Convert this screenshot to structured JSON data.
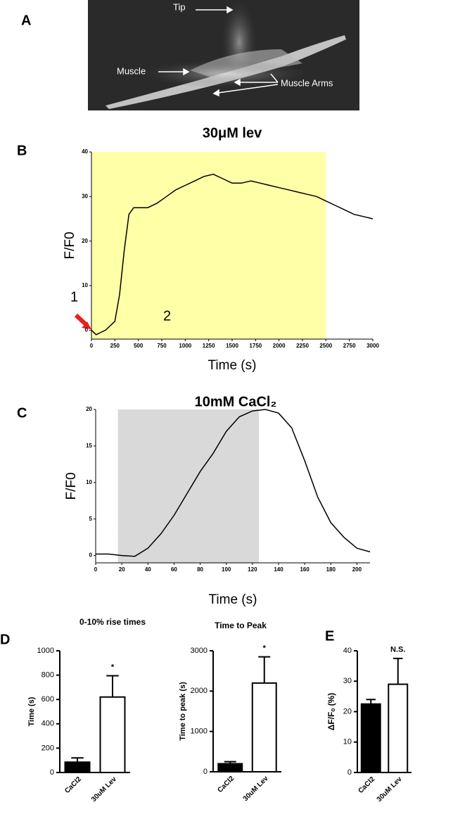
{
  "panels": {
    "a": "A",
    "b": "B",
    "c": "C",
    "d": "D",
    "e": "E"
  },
  "image": {
    "tip": "Tip",
    "muscle": "Muscle",
    "muscle_arms": "Muscle Arms"
  },
  "chart_data": [
    {
      "type": "line",
      "title": "30μM lev",
      "x_label": "Time (s)",
      "y_label": "F/F0",
      "x": [
        0,
        50,
        100,
        150,
        200,
        250,
        300,
        350,
        400,
        450,
        500,
        600,
        700,
        800,
        900,
        1000,
        1100,
        1200,
        1300,
        1400,
        1500,
        1600,
        1700,
        1800,
        1900,
        2000,
        2100,
        2200,
        2300,
        2400,
        2500,
        2600,
        2700,
        2800,
        2900,
        3000
      ],
      "values": [
        0,
        -1,
        -0.5,
        0,
        1,
        2,
        8,
        18,
        26,
        27.5,
        27.5,
        27.5,
        28.5,
        30,
        31.5,
        32.5,
        33.5,
        34.5,
        35,
        34,
        33,
        33,
        33.5,
        33,
        32.5,
        32,
        31.5,
        31,
        30.5,
        30,
        29,
        28,
        27,
        26,
        25.5,
        25
      ],
      "color": "#000000",
      "shade": {
        "range": [
          0,
          2500
        ],
        "color": "#ffffa8"
      },
      "xlim": [
        0,
        3000
      ],
      "xticks": [
        0,
        250,
        500,
        750,
        1000,
        1250,
        1500,
        1750,
        2000,
        2250,
        2500,
        2750,
        3000
      ],
      "ylim": [
        -2,
        40
      ],
      "yticks": [
        0,
        10,
        20,
        30,
        40
      ],
      "annotations": [
        "1",
        "2"
      ]
    },
    {
      "type": "line",
      "title": "10mM CaCl₂",
      "x_label": "Time (s)",
      "y_label": "F/F0",
      "x": [
        0,
        10,
        20,
        30,
        40,
        50,
        60,
        70,
        80,
        90,
        100,
        110,
        120,
        130,
        140,
        150,
        160,
        170,
        180,
        190,
        200,
        210
      ],
      "values": [
        0.2,
        0.2,
        0,
        -0.1,
        1,
        3,
        5.5,
        8.5,
        11.5,
        14,
        17,
        19,
        19.8,
        20,
        19.5,
        17.5,
        13,
        8,
        4.5,
        2.5,
        1,
        0.5
      ],
      "color": "#000000",
      "shade": {
        "range": [
          17,
          125
        ],
        "color": "#d9d9d9"
      },
      "xlim": [
        0,
        210
      ],
      "xticks": [
        0,
        20,
        40,
        60,
        80,
        100,
        120,
        140,
        160,
        180,
        200
      ],
      "ylim": [
        -1,
        20
      ],
      "yticks": [
        0,
        5,
        10,
        15,
        20
      ]
    },
    {
      "type": "bar",
      "title": "0-10% rise times",
      "y_label": "Time (s)",
      "categories": [
        "CaCl2",
        "30uM Lev"
      ],
      "values": [
        85,
        620
      ],
      "errors": [
        35,
        175
      ],
      "colors": [
        "#000000",
        "#ffffff"
      ],
      "annotation": "*",
      "ylim": [
        0,
        1000
      ],
      "yticks": [
        0,
        200,
        400,
        600,
        800,
        1000
      ]
    },
    {
      "type": "bar",
      "title": "Time to Peak",
      "y_label": "Time to peak (s)",
      "categories": [
        "CaCl2",
        "30uM Lev"
      ],
      "values": [
        200,
        2200
      ],
      "errors": [
        50,
        650
      ],
      "colors": [
        "#000000",
        "#ffffff"
      ],
      "annotation": "*",
      "ylim": [
        0,
        3000
      ],
      "yticks": [
        0,
        1000,
        2000,
        3000
      ]
    },
    {
      "type": "bar",
      "y_label": "ΔF/Fₒ (%)",
      "categories": [
        "CaCl2",
        "30uM Lev"
      ],
      "values": [
        22.5,
        29
      ],
      "errors": [
        1.5,
        8.5
      ],
      "colors": [
        "#000000",
        "#ffffff"
      ],
      "annotation": "N.S.",
      "ylim": [
        0,
        40
      ],
      "yticks": [
        0,
        10,
        20,
        30,
        40
      ]
    }
  ]
}
